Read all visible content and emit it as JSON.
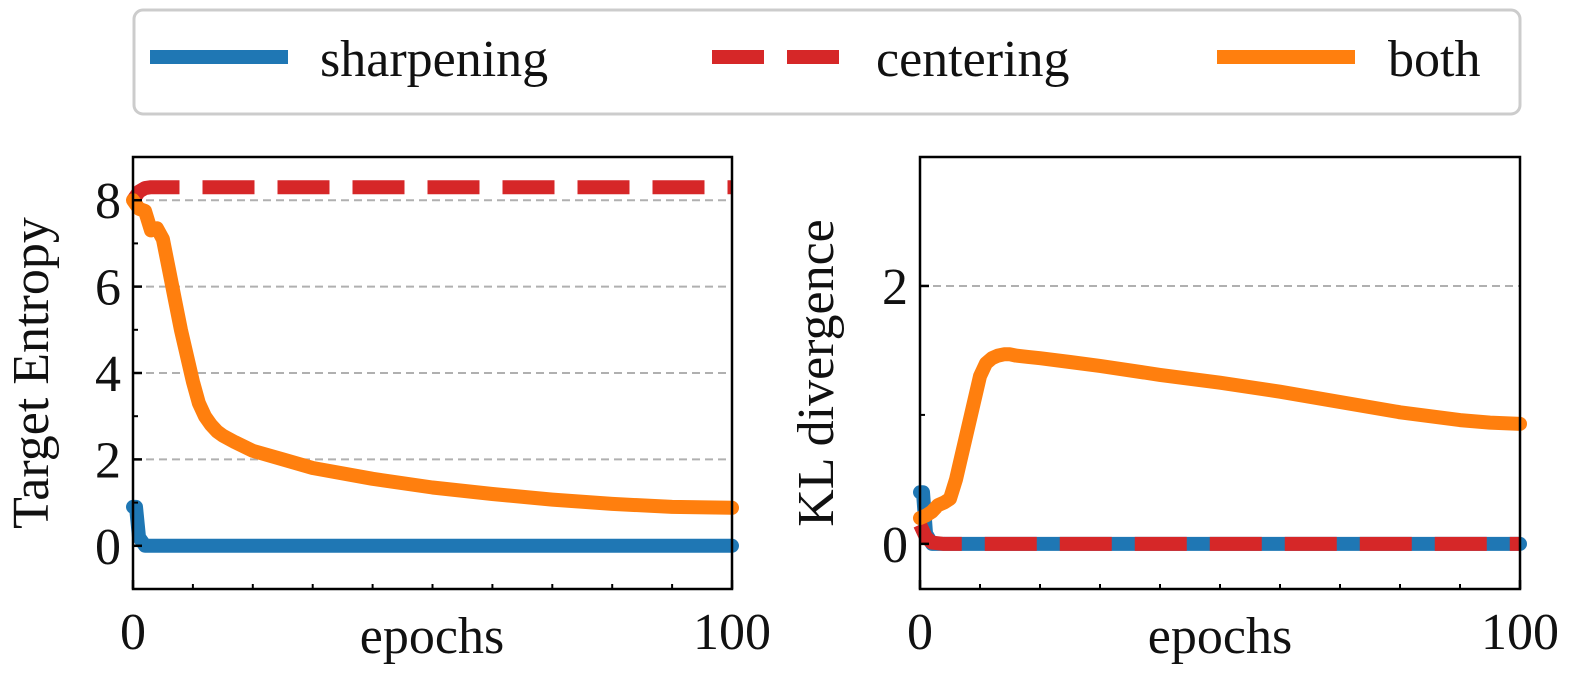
{
  "legend": {
    "placement": "top",
    "items": [
      {
        "label": "sharpening",
        "color": "#1f77b4",
        "style": "solid"
      },
      {
        "label": "centering",
        "color": "#d62728",
        "style": "dashed"
      },
      {
        "label": "both",
        "color": "#ff7f0e",
        "style": "solid"
      }
    ]
  },
  "chart_data": [
    {
      "type": "line",
      "xlabel": "epochs",
      "ylabel": "Target Entropy",
      "xlim": [
        0,
        100
      ],
      "ylim": [
        -1,
        9
      ],
      "xticks": [
        0,
        100
      ],
      "xtick_labels": [
        "0",
        "100"
      ],
      "yticks": [
        0,
        2,
        4,
        6,
        8
      ],
      "ytick_labels": [
        "0",
        "2",
        "4",
        "6",
        "8"
      ],
      "grid": "horizontal dashed",
      "series": [
        {
          "name": "sharpening",
          "x": [
            0,
            0.5,
            1,
            2,
            100
          ],
          "values": [
            0.9,
            0.9,
            0.2,
            0,
            0
          ]
        },
        {
          "name": "centering",
          "x": [
            0,
            1,
            2,
            3,
            5,
            100
          ],
          "values": [
            8.0,
            8.2,
            8.28,
            8.3,
            8.3,
            8.3
          ]
        },
        {
          "name": "both",
          "x": [
            0,
            1,
            2,
            3,
            4,
            5,
            6,
            7,
            8,
            9,
            10,
            11,
            12,
            13,
            14,
            15,
            17,
            20,
            25,
            30,
            40,
            50,
            60,
            70,
            80,
            90,
            100
          ],
          "values": [
            8.0,
            7.8,
            7.75,
            7.3,
            7.35,
            7.1,
            6.4,
            5.7,
            5.0,
            4.4,
            3.8,
            3.3,
            3.0,
            2.8,
            2.65,
            2.55,
            2.4,
            2.2,
            2.0,
            1.8,
            1.55,
            1.35,
            1.2,
            1.07,
            0.97,
            0.9,
            0.88
          ]
        }
      ]
    },
    {
      "type": "line",
      "xlabel": "epochs",
      "ylabel": "KL divergence",
      "xlim": [
        0,
        100
      ],
      "ylim": [
        -0.35,
        3
      ],
      "xticks": [
        0,
        100
      ],
      "xtick_labels": [
        "0",
        "100"
      ],
      "yticks": [
        0,
        2
      ],
      "ytick_labels": [
        "0",
        "2"
      ],
      "grid": "horizontal dashed",
      "series": [
        {
          "name": "sharpening",
          "x": [
            0,
            0.5,
            1,
            2,
            100
          ],
          "values": [
            0.4,
            0.4,
            0.08,
            0,
            0
          ]
        },
        {
          "name": "centering",
          "x": [
            0,
            1,
            2,
            4,
            100
          ],
          "values": [
            0.15,
            0.05,
            0.01,
            0,
            0
          ]
        },
        {
          "name": "both",
          "x": [
            0,
            1,
            2,
            3,
            4,
            5,
            6,
            7,
            8,
            9,
            10,
            11,
            12,
            13,
            14,
            15,
            16,
            18,
            20,
            25,
            30,
            40,
            50,
            60,
            70,
            80,
            90,
            95,
            100
          ],
          "values": [
            0.2,
            0.22,
            0.25,
            0.3,
            0.32,
            0.35,
            0.5,
            0.7,
            0.9,
            1.1,
            1.3,
            1.4,
            1.44,
            1.46,
            1.47,
            1.47,
            1.46,
            1.45,
            1.44,
            1.41,
            1.38,
            1.31,
            1.25,
            1.18,
            1.1,
            1.02,
            0.96,
            0.94,
            0.93
          ]
        }
      ]
    }
  ]
}
